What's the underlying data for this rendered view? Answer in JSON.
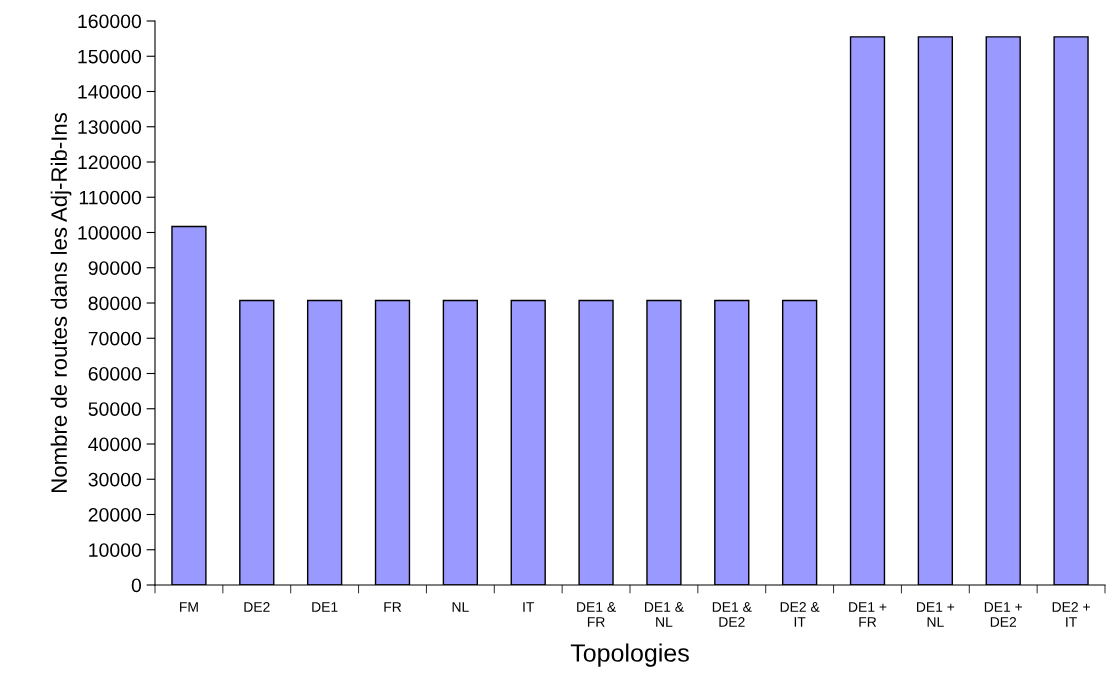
{
  "chart_data": {
    "type": "bar",
    "xlabel": "Topologies",
    "ylabel": "Nombre de routes dans les Adj-Rib-Ins",
    "categories": [
      "FM",
      "DE2",
      "DE1",
      "FR",
      "NL",
      "IT",
      "DE1 &\nFR",
      "DE1 &\nNL",
      "DE1 &\nDE2",
      "DE2 &\nIT",
      "DE1 +\nFR",
      "DE1 +\nNL",
      "DE1 +\nDE2",
      "DE2 +\nIT"
    ],
    "values": [
      101700,
      80700,
      80700,
      80700,
      80700,
      80700,
      80700,
      80700,
      80700,
      80700,
      155500,
      155500,
      155500,
      155500
    ],
    "color": "#9999ff",
    "ylim": [
      0,
      160000
    ],
    "yticks": [
      0,
      10000,
      20000,
      30000,
      40000,
      50000,
      60000,
      70000,
      80000,
      90000,
      100000,
      110000,
      120000,
      130000,
      140000,
      150000,
      160000
    ],
    "grid": false
  }
}
